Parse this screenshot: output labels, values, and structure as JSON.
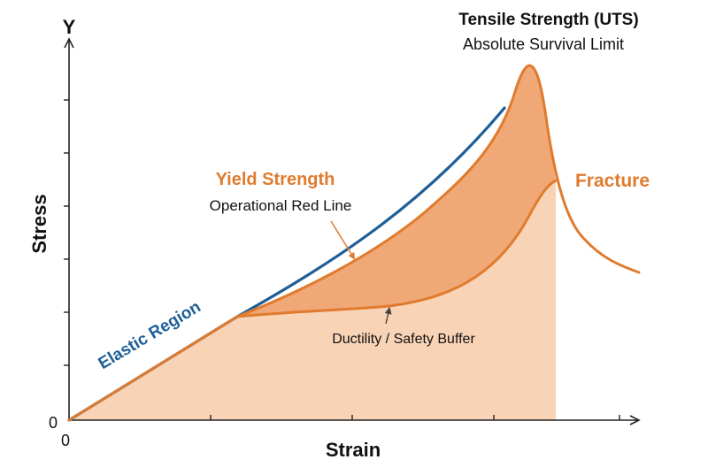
{
  "axes": {
    "y_letter": "Y",
    "y_label": "Stress",
    "x_label": "Strain",
    "origin_y": "0",
    "origin_x": "0"
  },
  "labels": {
    "uts_title": "Tensile Strength (UTS)",
    "uts_subtitle": "Absolute Survival Limit",
    "yield_title": "Yield Strength",
    "yield_subtitle": "Operational Red Line",
    "fracture": "Fracture",
    "elastic": "Elastic Region",
    "ductility": "Ductility / Safety Buffer"
  },
  "colors": {
    "blue": "#1f5f96",
    "orange": "#e07b2e",
    "fill_dark": "#f0a877",
    "fill_light": "#f9d3b6",
    "axis": "#222222"
  }
}
